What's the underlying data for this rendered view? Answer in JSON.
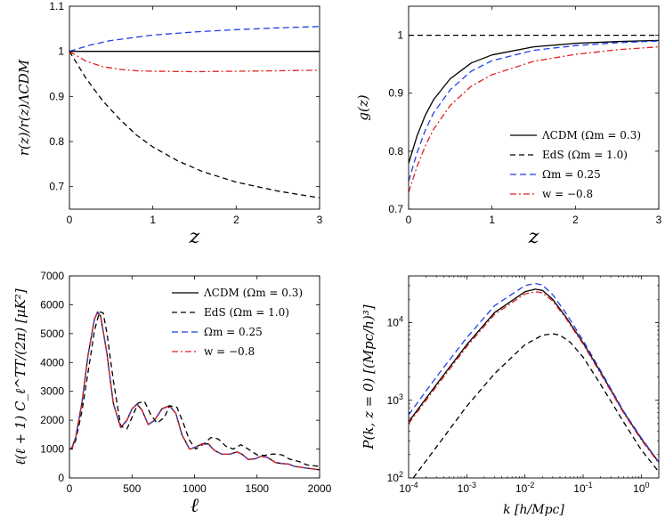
{
  "chart_data": [
    {
      "id": "p1",
      "type": "line",
      "xlabel": "z",
      "ylabel": "r(z)/r(z)ΛCDM",
      "xlim": [
        0,
        3
      ],
      "ylim": [
        0.65,
        1.1
      ],
      "xticks": [
        0,
        1,
        2,
        3
      ],
      "yticks": [
        0.7,
        0.8,
        0.9,
        1,
        1.1
      ],
      "ytick_labels": [
        "0.7",
        "0.8",
        "0.9",
        "1",
        "1.1"
      ],
      "legend": null,
      "series": [
        {
          "name": "ΛCDM (Ωm = 0.3)",
          "color": "#000000",
          "dash": "solid",
          "x": [
            0,
            3
          ],
          "y": [
            1.0,
            1.0
          ]
        },
        {
          "name": "EdS (Ωm = 1.0)",
          "color": "#000000",
          "dash": "dashed",
          "x": [
            0,
            0.2,
            0.4,
            0.6,
            0.8,
            1.0,
            1.3,
            1.6,
            2.0,
            2.5,
            3.0
          ],
          "y": [
            1.0,
            0.94,
            0.89,
            0.85,
            0.815,
            0.788,
            0.757,
            0.733,
            0.71,
            0.69,
            0.675
          ]
        },
        {
          "name": "Ωm = 0.25",
          "color": "#1f3fe8",
          "dash": "blue",
          "x": [
            0,
            0.25,
            0.5,
            1.0,
            1.5,
            2.0,
            2.5,
            3.0
          ],
          "y": [
            1.0,
            1.014,
            1.024,
            1.036,
            1.043,
            1.048,
            1.052,
            1.055
          ]
        },
        {
          "name": "w = −0.8",
          "color": "#e02020",
          "dash": "dashdot",
          "x": [
            0,
            0.2,
            0.4,
            0.6,
            0.8,
            1.0,
            1.5,
            2.0,
            2.5,
            3.0
          ],
          "y": [
            1.0,
            0.978,
            0.966,
            0.96,
            0.957,
            0.956,
            0.955,
            0.956,
            0.957,
            0.958
          ]
        }
      ]
    },
    {
      "id": "p2",
      "type": "line",
      "xlabel": "z",
      "ylabel": "g(z)",
      "xlim": [
        0,
        3
      ],
      "ylim": [
        0.7,
        1.05
      ],
      "xticks": [
        0,
        1,
        2,
        3
      ],
      "yticks": [
        0.7,
        0.8,
        0.9,
        1
      ],
      "ytick_labels": [
        "0.7",
        "0.8",
        "0.9",
        "1"
      ],
      "legend": "lower-right",
      "series": [
        {
          "name": "ΛCDM (Ωm = 0.3)",
          "color": "#000000",
          "dash": "solid",
          "x": [
            0,
            0.1,
            0.2,
            0.3,
            0.5,
            0.75,
            1.0,
            1.5,
            2.0,
            2.5,
            3.0
          ],
          "y": [
            0.779,
            0.826,
            0.862,
            0.889,
            0.925,
            0.952,
            0.966,
            0.98,
            0.986,
            0.989,
            0.991
          ]
        },
        {
          "name": "EdS (Ωm = 1.0)",
          "color": "#000000",
          "dash": "dashed",
          "x": [
            0,
            3
          ],
          "y": [
            1.0,
            1.0
          ]
        },
        {
          "name": "Ωm = 0.25",
          "color": "#1f3fe8",
          "dash": "blue",
          "x": [
            0,
            0.1,
            0.2,
            0.3,
            0.5,
            0.75,
            1.0,
            1.5,
            2.0,
            2.5,
            3.0
          ],
          "y": [
            0.748,
            0.797,
            0.836,
            0.866,
            0.906,
            0.938,
            0.956,
            0.974,
            0.982,
            0.987,
            0.99
          ]
        },
        {
          "name": "w = −0.8",
          "color": "#e02020",
          "dash": "dashdot",
          "x": [
            0,
            0.1,
            0.2,
            0.3,
            0.5,
            0.75,
            1.0,
            1.5,
            2.0,
            2.5,
            3.0
          ],
          "y": [
            0.729,
            0.773,
            0.809,
            0.838,
            0.879,
            0.912,
            0.932,
            0.955,
            0.967,
            0.975,
            0.98
          ]
        }
      ]
    },
    {
      "id": "p3",
      "type": "line",
      "xlabel": "ℓ",
      "ylabel": "ℓ(ℓ + 1) C_ℓ^TT/(2π) [μK²]",
      "xlim": [
        0,
        2000
      ],
      "ylim": [
        0,
        7000
      ],
      "xticks": [
        0,
        500,
        1000,
        1500,
        2000
      ],
      "yticks": [
        0,
        1000,
        2000,
        3000,
        4000,
        5000,
        6000,
        7000
      ],
      "ytick_labels": [
        "0",
        "1000",
        "2000",
        "3000",
        "4000",
        "5000",
        "6000",
        "7000"
      ],
      "legend": "top-right",
      "series": [
        {
          "name": "ΛCDM (Ωm = 0.3)",
          "color": "#000000",
          "dash": "solid",
          "x": [
            0,
            20,
            50,
            100,
            150,
            200,
            225,
            250,
            300,
            350,
            410,
            460,
            500,
            540,
            580,
            630,
            680,
            740,
            800,
            850,
            900,
            960,
            1000,
            1060,
            1110,
            1160,
            1220,
            1280,
            1340,
            1380,
            1430,
            1480,
            1530,
            1580,
            1650,
            1700,
            1750,
            1800,
            1900,
            2000
          ],
          "y": [
            1000,
            1050,
            1400,
            2600,
            4300,
            5500,
            5750,
            5600,
            4300,
            2600,
            1750,
            2000,
            2400,
            2560,
            2350,
            1850,
            2000,
            2400,
            2500,
            2250,
            1500,
            1000,
            1050,
            1180,
            1180,
            950,
            820,
            820,
            900,
            820,
            640,
            660,
            750,
            720,
            530,
            500,
            480,
            400,
            340,
            280
          ]
        },
        {
          "name": "EdS (Ωm = 1.0)",
          "color": "#000000",
          "dash": "dashed",
          "x": [
            0,
            20,
            50,
            100,
            150,
            200,
            240,
            270,
            300,
            350,
            410,
            460,
            500,
            550,
            600,
            650,
            700,
            760,
            800,
            860,
            910,
            960,
            1010,
            1080,
            1130,
            1190,
            1250,
            1310,
            1370,
            1430,
            1500,
            1560,
            1630,
            1700,
            1760,
            1840,
            1900,
            2000
          ],
          "y": [
            1000,
            1020,
            1300,
            2300,
            3700,
            5100,
            5750,
            5720,
            5000,
            3400,
            1800,
            1700,
            2100,
            2600,
            2650,
            2200,
            1900,
            2100,
            2500,
            2450,
            1900,
            1300,
            1000,
            1200,
            1400,
            1350,
            1100,
            1000,
            1150,
            1000,
            800,
            780,
            830,
            800,
            650,
            560,
            450,
            400
          ]
        },
        {
          "name": "Ωm = 0.25",
          "color": "#1f3fe8",
          "dash": "blue",
          "x": [
            0,
            20,
            50,
            100,
            150,
            200,
            222,
            250,
            300,
            350,
            410,
            460,
            500,
            540,
            580,
            630,
            680,
            740,
            800,
            850,
            900,
            960,
            1000,
            1060,
            1110,
            1160,
            1220,
            1280,
            1340,
            1380,
            1430,
            1480,
            1530,
            1580,
            1650,
            1700,
            1750,
            1800,
            1900,
            2000
          ],
          "y": [
            1000,
            1050,
            1400,
            2600,
            4300,
            5500,
            5730,
            5580,
            4280,
            2580,
            1740,
            1990,
            2390,
            2550,
            2340,
            1840,
            1990,
            2390,
            2490,
            2240,
            1490,
            1000,
            1050,
            1170,
            1170,
            950,
            820,
            820,
            900,
            820,
            640,
            660,
            745,
            715,
            530,
            500,
            480,
            400,
            340,
            280
          ]
        },
        {
          "name": "w = −0.8",
          "color": "#e02020",
          "dash": "dashdot",
          "x": [
            0,
            20,
            50,
            100,
            150,
            200,
            224,
            250,
            300,
            350,
            410,
            460,
            500,
            540,
            580,
            630,
            680,
            740,
            800,
            850,
            900,
            960,
            1000,
            1060,
            1110,
            1160,
            1220,
            1280,
            1340,
            1380,
            1430,
            1480,
            1530,
            1580,
            1650,
            1700,
            1750,
            1800,
            1900,
            2000
          ],
          "y": [
            1000,
            1050,
            1400,
            2600,
            4300,
            5500,
            5740,
            5590,
            4290,
            2590,
            1745,
            1995,
            2395,
            2555,
            2345,
            1845,
            1995,
            2395,
            2495,
            2245,
            1495,
            1000,
            1050,
            1175,
            1175,
            950,
            820,
            820,
            900,
            820,
            640,
            660,
            748,
            718,
            530,
            500,
            480,
            400,
            340,
            280
          ]
        }
      ]
    },
    {
      "id": "p4",
      "type": "line",
      "xscale": "log",
      "yscale": "log",
      "xlabel": "k [h/Mpc]",
      "ylabel": "P(k, z = 0) [(Mpc/h)³]",
      "xlim": [
        0.0001,
        2
      ],
      "ylim": [
        100,
        40000
      ],
      "xticks": [
        0.0001,
        0.001,
        0.01,
        0.1,
        1
      ],
      "xtick_base": [
        "10",
        "10",
        "10",
        "10",
        "10"
      ],
      "xtick_exp": [
        "-4",
        "-3",
        "-2",
        "-1",
        "0"
      ],
      "yticks": [
        100,
        1000,
        10000
      ],
      "ytick_base": [
        "10",
        "10",
        "10"
      ],
      "ytick_exp": [
        "2",
        "3",
        "4"
      ],
      "legend": null,
      "series": [
        {
          "name": "ΛCDM (Ωm = 0.3)",
          "color": "#000000",
          "dash": "solid",
          "x": [
            0.0001,
            0.0003,
            0.001,
            0.003,
            0.01,
            0.015,
            0.02,
            0.03,
            0.05,
            0.1,
            0.2,
            0.5,
            1,
            2
          ],
          "y": [
            530,
            1600,
            5200,
            13500,
            25000,
            27000,
            26000,
            20000,
            12000,
            5500,
            2300,
            700,
            320,
            160
          ]
        },
        {
          "name": "EdS (Ωm = 1.0)",
          "color": "#000000",
          "dash": "dashed",
          "x": [
            0.00012,
            0.0003,
            0.001,
            0.003,
            0.01,
            0.02,
            0.03,
            0.04,
            0.06,
            0.1,
            0.2,
            0.5,
            1,
            2
          ],
          "y": [
            100,
            250,
            840,
            2200,
            5200,
            6900,
            7200,
            6900,
            5600,
            3600,
            1600,
            520,
            230,
            120
          ]
        },
        {
          "name": "Ωm = 0.25",
          "color": "#1f3fe8",
          "dash": "blue",
          "x": [
            0.0001,
            0.0003,
            0.001,
            0.003,
            0.01,
            0.015,
            0.02,
            0.03,
            0.05,
            0.1,
            0.2,
            0.5,
            1,
            2
          ],
          "y": [
            650,
            2000,
            6400,
            16500,
            30000,
            32000,
            30500,
            23000,
            13500,
            5900,
            2400,
            720,
            330,
            160
          ]
        },
        {
          "name": "w = −0.8",
          "color": "#e02020",
          "dash": "dashdot",
          "x": [
            0.0001,
            0.0003,
            0.001,
            0.003,
            0.01,
            0.015,
            0.02,
            0.03,
            0.05,
            0.1,
            0.2,
            0.5,
            1,
            2
          ],
          "y": [
            500,
            1500,
            4900,
            12800,
            23500,
            25000,
            24200,
            19000,
            11500,
            5300,
            2200,
            680,
            310,
            155
          ]
        }
      ]
    }
  ]
}
